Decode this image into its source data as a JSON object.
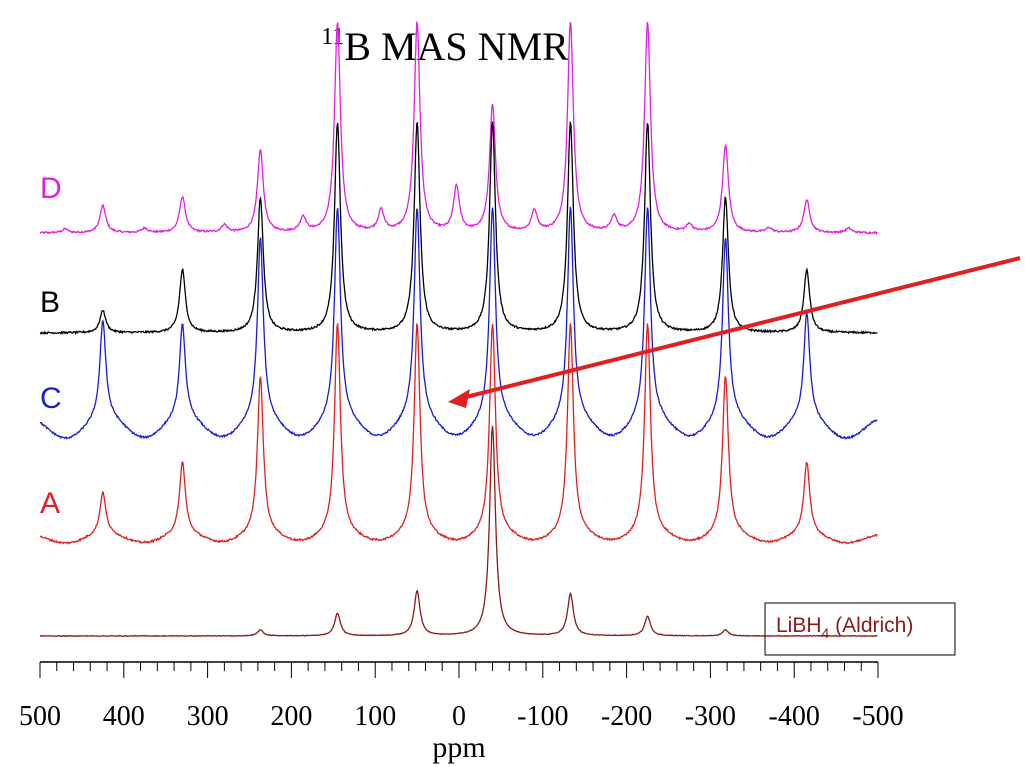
{
  "chart_data": {
    "type": "line",
    "title_sup": "11",
    "title_main": "B MAS NMR",
    "xlabel": "ppm",
    "xlim": [
      500,
      -500
    ],
    "x_ticks": [
      500,
      400,
      300,
      200,
      100,
      0,
      -100,
      -200,
      -300,
      -400,
      -500
    ],
    "x_tick_labels": [
      "500",
      "400",
      "300",
      "200",
      "100",
      "0",
      "-100",
      "-200",
      "-300",
      "-400",
      "-500"
    ],
    "x_minor_step": 20,
    "reference_label_main": "LiBH",
    "reference_label_sub": "4",
    "reference_label_rest": " (Aldrich)",
    "series": [
      {
        "name": "D",
        "color": "#e020e0",
        "baseline": 0.0,
        "peaks": [
          {
            "x": 470,
            "h": 0.025
          },
          {
            "x": 425,
            "h": 0.18
          },
          {
            "x": 375,
            "h": 0.03
          },
          {
            "x": 330,
            "h": 0.24
          },
          {
            "x": 280,
            "h": 0.05
          },
          {
            "x": 237,
            "h": 0.55
          },
          {
            "x": 186,
            "h": 0.1
          },
          {
            "x": 145,
            "h": 1.4
          },
          {
            "x": 93,
            "h": 0.14
          },
          {
            "x": 50,
            "h": 1.4
          },
          {
            "x": 3,
            "h": 0.3
          },
          {
            "x": -40,
            "h": 0.85
          },
          {
            "x": -90,
            "h": 0.14
          },
          {
            "x": -133,
            "h": 1.4
          },
          {
            "x": -185,
            "h": 0.1
          },
          {
            "x": -225,
            "h": 1.4
          },
          {
            "x": -275,
            "h": 0.05
          },
          {
            "x": -318,
            "h": 0.58
          },
          {
            "x": -370,
            "h": 0.03
          },
          {
            "x": -415,
            "h": 0.22
          },
          {
            "x": -465,
            "h": 0.03
          }
        ]
      },
      {
        "name": "B",
        "color": "#000000",
        "baseline": 0.0,
        "peaks": [
          {
            "x": 425,
            "h": 0.15
          },
          {
            "x": 330,
            "h": 0.42
          },
          {
            "x": 237,
            "h": 0.9
          },
          {
            "x": 145,
            "h": 1.4
          },
          {
            "x": 50,
            "h": 1.4
          },
          {
            "x": -40,
            "h": 1.4
          },
          {
            "x": -133,
            "h": 1.4
          },
          {
            "x": -225,
            "h": 1.4
          },
          {
            "x": -318,
            "h": 0.9
          },
          {
            "x": -415,
            "h": 0.42
          }
        ]
      },
      {
        "name": "C",
        "color": "#1a1ad0",
        "baseline": 0.0,
        "peaks": [
          {
            "x": 425,
            "h": 0.65
          },
          {
            "x": 330,
            "h": 0.62
          },
          {
            "x": 237,
            "h": 1.2
          },
          {
            "x": 145,
            "h": 1.4
          },
          {
            "x": 50,
            "h": 1.4
          },
          {
            "x": -40,
            "h": 1.4
          },
          {
            "x": -133,
            "h": 1.4
          },
          {
            "x": -225,
            "h": 1.4
          },
          {
            "x": -318,
            "h": 1.2
          },
          {
            "x": -415,
            "h": 0.7
          }
        ]
      },
      {
        "name": "A",
        "color": "#e02020",
        "baseline": 0.0,
        "peaks": [
          {
            "x": 425,
            "h": 0.28
          },
          {
            "x": 330,
            "h": 0.48
          },
          {
            "x": 237,
            "h": 1.05
          },
          {
            "x": 145,
            "h": 1.4
          },
          {
            "x": 50,
            "h": 1.4
          },
          {
            "x": -40,
            "h": 1.4
          },
          {
            "x": -133,
            "h": 1.4
          },
          {
            "x": -225,
            "h": 1.4
          },
          {
            "x": -318,
            "h": 1.05
          },
          {
            "x": -415,
            "h": 0.48
          }
        ]
      },
      {
        "name": "LiBH4 (Aldrich)",
        "color": "#8b1a1a",
        "baseline": 0.0,
        "peaks": [
          {
            "x": 237,
            "h": 0.04
          },
          {
            "x": 145,
            "h": 0.15
          },
          {
            "x": 50,
            "h": 0.3
          },
          {
            "x": -40,
            "h": 1.4
          },
          {
            "x": -133,
            "h": 0.28
          },
          {
            "x": -225,
            "h": 0.13
          },
          {
            "x": -318,
            "h": 0.04
          }
        ]
      }
    ],
    "annotation": {
      "type": "arrow",
      "color": "#e02020",
      "from_x": -615,
      "to_x": 5
    }
  }
}
